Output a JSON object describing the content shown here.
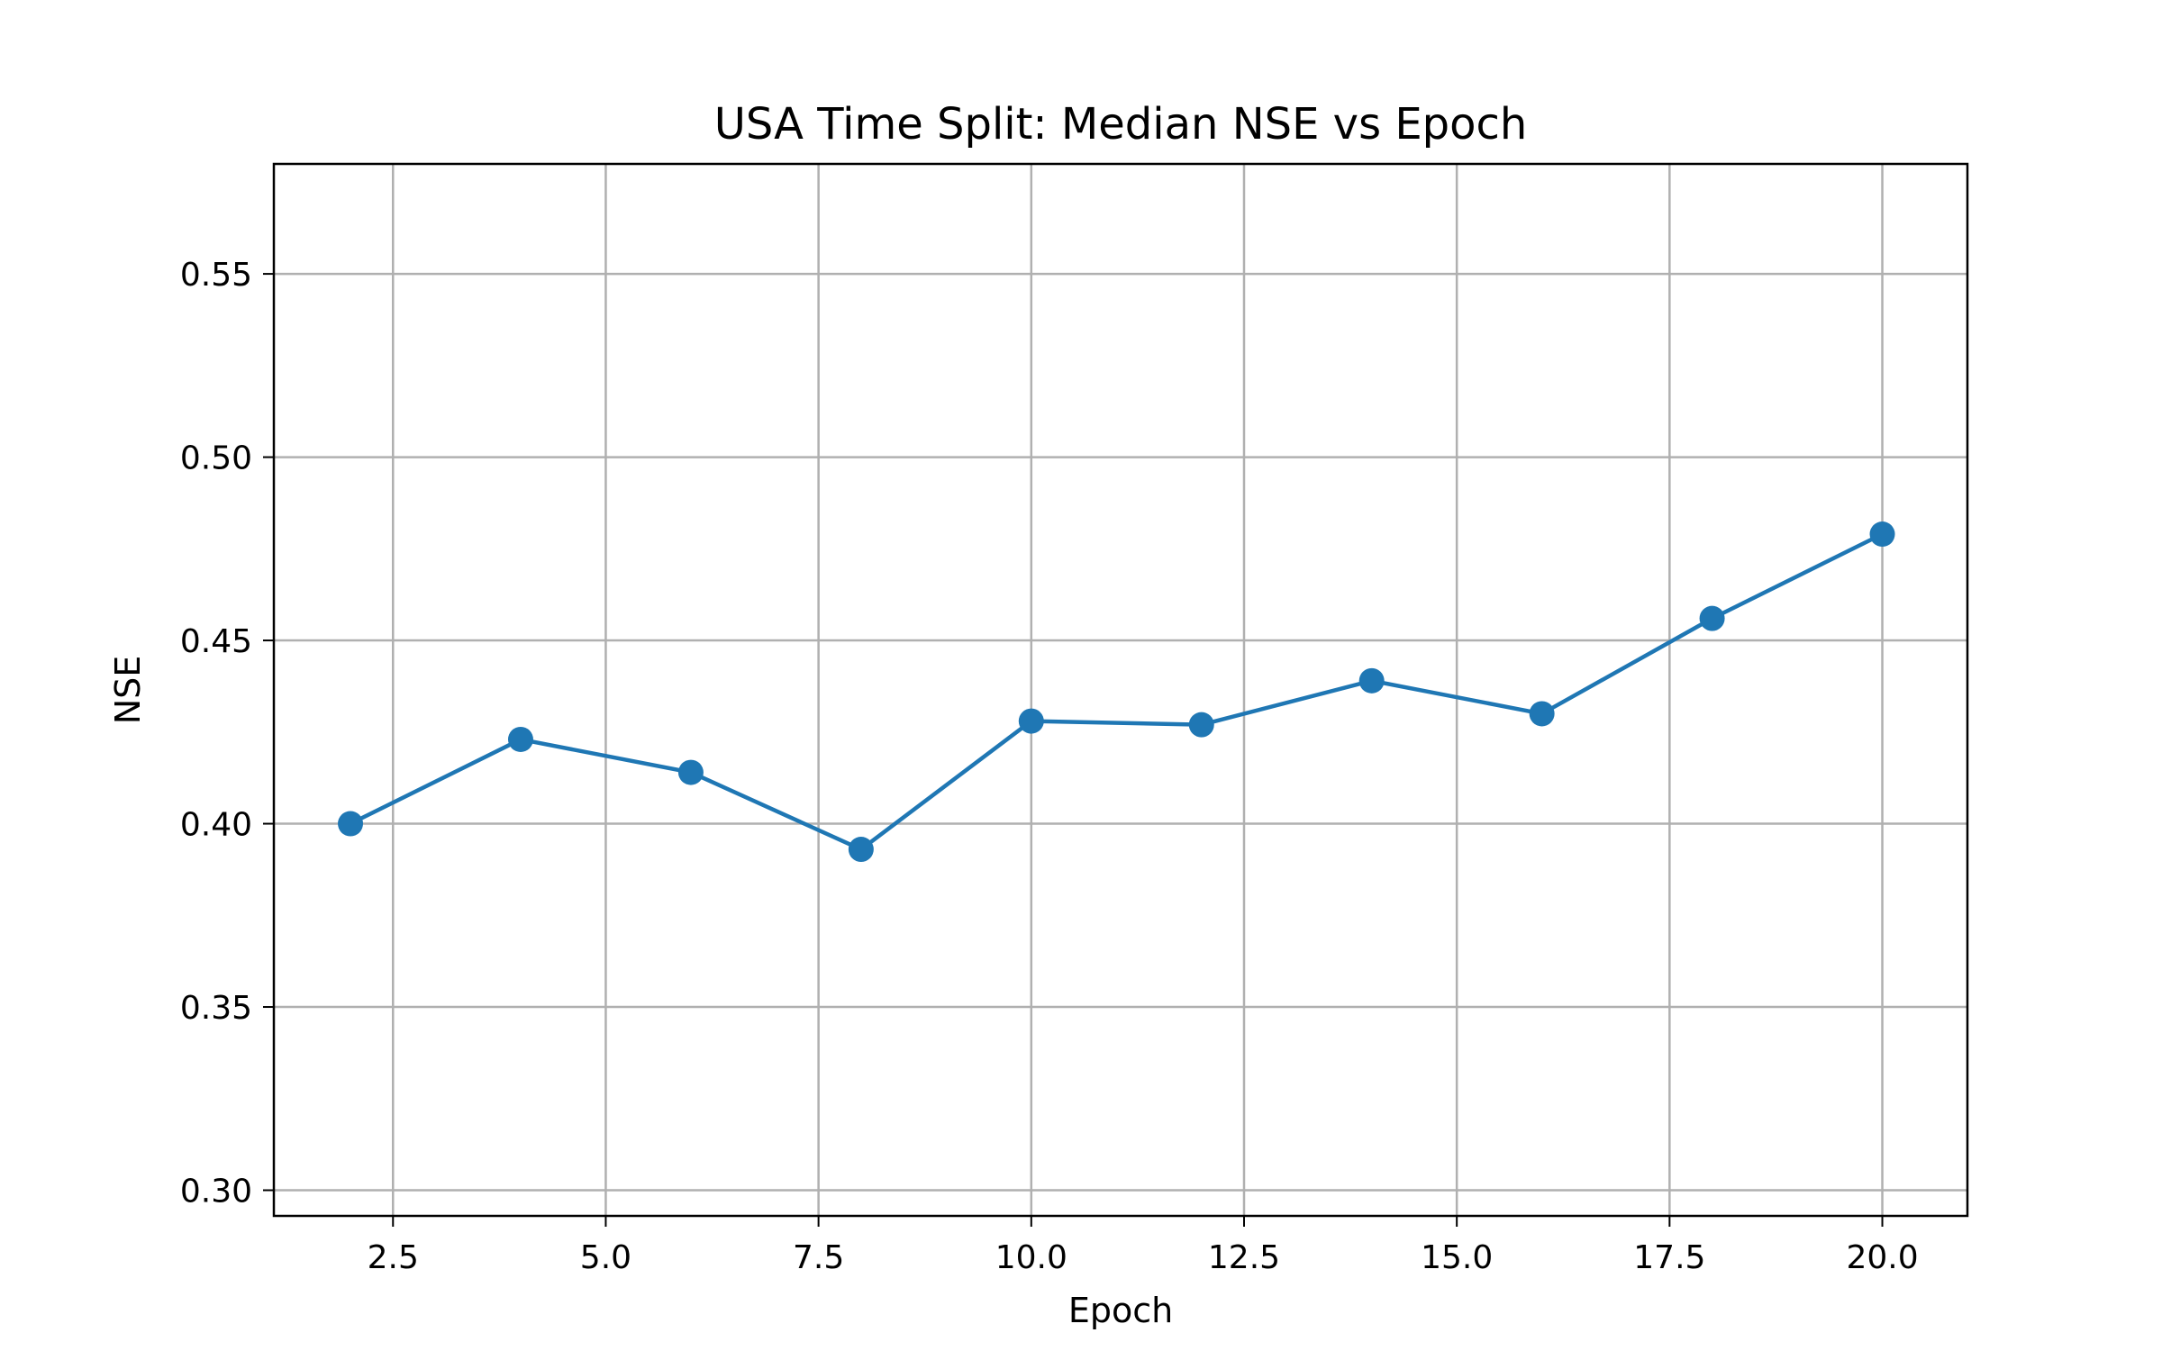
{
  "chart_data": {
    "type": "line",
    "title": "USA Time Split: Median NSE vs Epoch",
    "xlabel": "Epoch",
    "ylabel": "NSE",
    "xlim": [
      1.1,
      21.0
    ],
    "ylim": [
      0.293,
      0.58
    ],
    "xticks": [
      2.5,
      5.0,
      7.5,
      10.0,
      12.5,
      15.0,
      17.5,
      20.0
    ],
    "xtick_labels": [
      "2.5",
      "5.0",
      "7.5",
      "10.0",
      "12.5",
      "15.0",
      "17.5",
      "20.0"
    ],
    "yticks": [
      0.3,
      0.35,
      0.4,
      0.45,
      0.5,
      0.55
    ],
    "ytick_labels": [
      "0.30",
      "0.35",
      "0.40",
      "0.45",
      "0.50",
      "0.55"
    ],
    "grid": true,
    "series": [
      {
        "x": [
          2,
          4,
          6,
          8,
          10,
          12,
          14,
          16,
          18,
          20
        ],
        "values": [
          0.4,
          0.423,
          0.414,
          0.393,
          0.428,
          0.427,
          0.439,
          0.43,
          0.456,
          0.479
        ],
        "color": "#1f77b4",
        "marker": "circle"
      }
    ]
  }
}
